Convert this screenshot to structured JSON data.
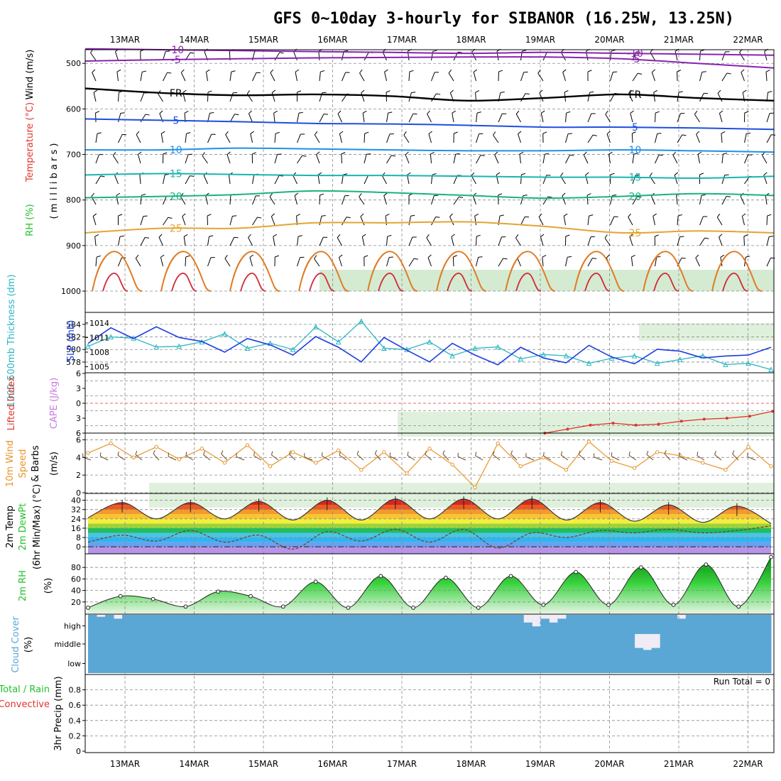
{
  "title": "GFS 0~10day 3-hourly for SIBANOR (16.25W, 13.25N)",
  "colors": {
    "temperature": "#e2342d",
    "wind": "#000000",
    "rh": "#22c02a",
    "thickness": "#2ab7c4",
    "slp": "#1c3ee0",
    "cape": "#c879e0",
    "lifted": "#e2342d",
    "windspeed": "#e8952a",
    "barbs": "#6b4a2a",
    "rh2m": "#22c02a",
    "cloud": "#5aa7d6",
    "precip": "#e2342d"
  },
  "chart_data": [
    {
      "type": "line",
      "panel": "upper-air",
      "x": [
        "13MAR",
        "14MAR",
        "15MAR",
        "16MAR",
        "17MAR",
        "18MAR",
        "19MAR",
        "20MAR",
        "21MAR",
        "22MAR"
      ],
      "ylabel_parts": [
        "RH (%)",
        "Temperature (°C)",
        "Wind (m/s)",
        "( m i l l i b a r s )"
      ],
      "yticks": [
        500,
        600,
        700,
        800,
        900,
        1000
      ],
      "ylim": [
        470,
        1000
      ],
      "isotherms": [
        {
          "name": "-10",
          "values": [
            468,
            470,
            472,
            474,
            476,
            478,
            476,
            478,
            480,
            482
          ]
        },
        {
          "name": "-5",
          "values": [
            495,
            492,
            490,
            488,
            487,
            486,
            486,
            490,
            500,
            510
          ]
        },
        {
          "name": "FR",
          "values": [
            555,
            565,
            570,
            568,
            572,
            582,
            576,
            568,
            576,
            582
          ]
        },
        {
          "name": "5",
          "values": [
            622,
            625,
            628,
            632,
            633,
            636,
            640,
            640,
            642,
            645
          ]
        },
        {
          "name": "10",
          "values": [
            690,
            690,
            686,
            688,
            690,
            692,
            692,
            690,
            692,
            695
          ]
        },
        {
          "name": "15",
          "values": [
            745,
            742,
            744,
            746,
            746,
            748,
            750,
            750,
            752,
            748
          ]
        },
        {
          "name": "20",
          "values": [
            795,
            792,
            788,
            780,
            784,
            790,
            796,
            792,
            786,
            790
          ]
        },
        {
          "name": "25",
          "values": [
            872,
            862,
            862,
            850,
            850,
            848,
            858,
            872,
            868,
            872
          ]
        }
      ]
    },
    {
      "type": "line",
      "panel": "slp-thickness",
      "ylabel": "1000-500mb Thickness (dm)",
      "ylabel_right": "SLP (mb)",
      "yticks_left": [
        578,
        580,
        582,
        584
      ],
      "yticks_right": [
        1005,
        1008,
        1011,
        1014
      ],
      "series": [
        {
          "name": "1000-500mb Thickness (dm)",
          "values": [
            580.5,
            582.0,
            581.8,
            580.4,
            580.5,
            581.2,
            582.5,
            580.2,
            581.0,
            580.0,
            583.6,
            581.2,
            584.5,
            580.2,
            580.0,
            581.2,
            579.0,
            580.2,
            580.4,
            578.5,
            579.2,
            579.0,
            577.8,
            578.6,
            579.0,
            577.8,
            578.4,
            579.0,
            577.6,
            577.8,
            576.8
          ]
        },
        {
          "name": "SLP (mb)",
          "values": [
            1009.8,
            1013.0,
            1010.8,
            1013.2,
            1011.0,
            1010.2,
            1008.0,
            1010.8,
            1009.5,
            1007.4,
            1011.2,
            1009.0,
            1006.0,
            1011.0,
            1008.4,
            1006.0,
            1009.8,
            1007.4,
            1005.4,
            1009.0,
            1006.8,
            1005.8,
            1009.4,
            1007.0,
            1005.6,
            1008.6,
            1008.2,
            1006.8,
            1007.2,
            1007.4,
            1009.0
          ]
        }
      ]
    },
    {
      "type": "line",
      "panel": "cape-lifted",
      "ylabel": "Lifted Index",
      "ylabel_cape": "CAPE (J/kg)",
      "yticks": [
        "6",
        "3",
        "0",
        "3",
        "6"
      ],
      "ylim": [
        -6,
        6
      ],
      "series": [
        {
          "name": "Lifted Index",
          "x_start_index": 20,
          "values": [
            6.0,
            5.2,
            4.4,
            4.0,
            4.4,
            4.2,
            3.6,
            3.2,
            3.0,
            2.6,
            1.6
          ]
        }
      ]
    },
    {
      "type": "line",
      "panel": "wind10m",
      "ylabel_parts": [
        "10m Wind",
        "Speed",
        "& Barbs",
        "(m/s)"
      ],
      "yticks": [
        0,
        2,
        4,
        6
      ],
      "ylim": [
        0,
        6.6
      ],
      "series": [
        {
          "name": "Speed",
          "values": [
            4.5,
            5.6,
            4.0,
            5.2,
            3.8,
            5.0,
            3.4,
            5.4,
            3.0,
            4.6,
            3.4,
            4.8,
            2.6,
            4.6,
            2.2,
            5.0,
            3.2,
            0.6,
            5.6,
            3.0,
            4.0,
            2.6,
            5.8,
            3.6,
            2.8,
            4.6,
            4.2,
            3.4,
            2.6,
            5.2,
            3.0
          ]
        }
      ]
    },
    {
      "type": "area",
      "panel": "temp2m",
      "ylabel_parts": [
        "2m Temp",
        "2m DewPt",
        "(6hr Min/Max) (°C)"
      ],
      "yticks": [
        0,
        8,
        16,
        24,
        32,
        40
      ],
      "ylim": [
        -6,
        44
      ],
      "series": [
        {
          "name": "2m Temp",
          "values": [
            25,
            38,
            24,
            38,
            24,
            39,
            23,
            40,
            23,
            41,
            24,
            41,
            24,
            41,
            23,
            38,
            22,
            36,
            21,
            35,
            20
          ]
        },
        {
          "name": "2m DewPt",
          "values": [
            4,
            10,
            5,
            14,
            4,
            10,
            -2,
            13,
            5,
            15,
            4,
            15,
            -1,
            12,
            8,
            14,
            12,
            15,
            12,
            14,
            18
          ]
        }
      ]
    },
    {
      "type": "area",
      "panel": "rh2m",
      "ylabel": "2m RH",
      "yunit": "(%)",
      "yticks": [
        20,
        40,
        60,
        80
      ],
      "ylim": [
        0,
        100
      ],
      "series": [
        {
          "name": "2m RH",
          "values": [
            10,
            30,
            25,
            12,
            38,
            30,
            12,
            55,
            10,
            65,
            10,
            62,
            10,
            65,
            15,
            72,
            15,
            80,
            15,
            85,
            12,
            98
          ]
        }
      ]
    },
    {
      "type": "bar",
      "panel": "cloud",
      "ylabel": "Cloud Cover",
      "yunit": "(%)",
      "yticks": [
        "high",
        "middle",
        "low"
      ],
      "series": [
        {
          "name": "high",
          "values": [
            100,
            90,
            100,
            80,
            100,
            100,
            100,
            100,
            100,
            100,
            100,
            100,
            100,
            100,
            100,
            100,
            100,
            100,
            100,
            100,
            100,
            100,
            100,
            100,
            100,
            100,
            100,
            100,
            100,
            100,
            100,
            100,
            100,
            100,
            100,
            100,
            100,
            100,
            100,
            100,
            100,
            100,
            100,
            100,
            100,
            100,
            100,
            100,
            100,
            100,
            100,
            60,
            40,
            80,
            60,
            80,
            100,
            100,
            100,
            100,
            100,
            100,
            100,
            100,
            100,
            100,
            100,
            100,
            100,
            80,
            100,
            100,
            100,
            100,
            100,
            100,
            100,
            100,
            100,
            100
          ]
        },
        {
          "name": "middle",
          "values": [
            100,
            100,
            100,
            100,
            100,
            100,
            100,
            100,
            100,
            100,
            100,
            100,
            100,
            100,
            100,
            100,
            100,
            100,
            100,
            100,
            100,
            100,
            100,
            100,
            100,
            100,
            100,
            100,
            100,
            100,
            100,
            100,
            100,
            100,
            100,
            100,
            100,
            100,
            100,
            100,
            100,
            100,
            100,
            100,
            100,
            100,
            100,
            100,
            100,
            100,
            100,
            100,
            100,
            100,
            100,
            100,
            100,
            100,
            100,
            100,
            100,
            100,
            100,
            100,
            30,
            20,
            30,
            100,
            100,
            100,
            100,
            100,
            100,
            100,
            100,
            100,
            100,
            100,
            100,
            100
          ]
        },
        {
          "name": "low",
          "values": [
            100,
            100,
            100,
            100,
            100,
            100,
            100,
            100,
            100,
            100,
            100,
            100,
            100,
            100,
            100,
            100,
            100,
            100,
            100,
            100,
            100,
            100,
            100,
            100,
            100,
            100,
            100,
            100,
            100,
            100,
            100,
            100,
            100,
            100,
            100,
            100,
            100,
            100,
            100,
            100,
            100,
            100,
            100,
            100,
            100,
            100,
            100,
            100,
            100,
            100,
            100,
            100,
            100,
            100,
            100,
            100,
            100,
            100,
            100,
            100,
            100,
            100,
            100,
            100,
            100,
            100,
            100,
            100,
            100,
            100,
            100,
            100,
            100,
            100,
            100,
            100,
            100,
            100,
            100,
            100
          ]
        }
      ]
    },
    {
      "type": "bar",
      "panel": "precip",
      "ylabel_parts": [
        "3hr Precip (mm)",
        "Total / Rain",
        "Convective"
      ],
      "yticks": [
        0,
        0.2,
        0.4,
        0.6,
        0.8
      ],
      "ylim": [
        0,
        1.0
      ],
      "annotation": "Run Total = 0",
      "series": [
        {
          "name": "Total / Rain",
          "values": []
        },
        {
          "name": "Convective",
          "values": []
        }
      ]
    }
  ]
}
